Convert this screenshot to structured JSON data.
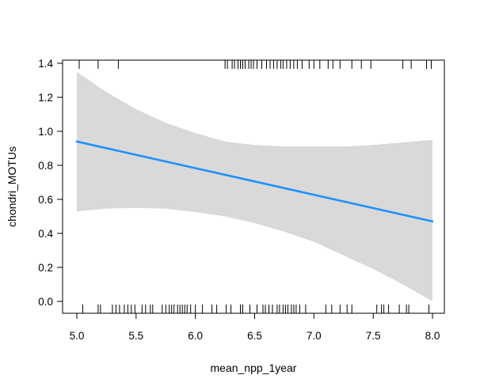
{
  "chart_data": {
    "type": "line",
    "title": "",
    "xlabel": "mean_npp_1year",
    "ylabel": "chondri_MOTUs",
    "xlim": [
      4.9,
      8.1
    ],
    "ylim": [
      -0.07,
      1.42
    ],
    "x_ticks": [
      "5.0",
      "5.5",
      "6.0",
      "6.5",
      "7.0",
      "7.5",
      "8.0"
    ],
    "y_ticks": [
      "0.0",
      "0.2",
      "0.4",
      "0.6",
      "0.8",
      "1.0",
      "1.2",
      "1.4"
    ],
    "grid": false,
    "legend": "none",
    "series": [
      {
        "fit_x": [
          5.0,
          8.0
        ],
        "fit_y": [
          0.94,
          0.47
        ],
        "color": "#1E90FF"
      }
    ],
    "confidence_band": {
      "color": "#D9D9D9",
      "x": [
        5.0,
        5.25,
        5.5,
        5.75,
        6.0,
        6.25,
        6.5,
        6.75,
        7.0,
        7.25,
        7.5,
        7.75,
        8.0
      ],
      "upper": [
        1.35,
        1.23,
        1.13,
        1.05,
        0.99,
        0.94,
        0.92,
        0.91,
        0.91,
        0.91,
        0.92,
        0.935,
        0.95
      ],
      "lower": [
        0.53,
        0.545,
        0.55,
        0.545,
        0.525,
        0.5,
        0.46,
        0.41,
        0.35,
        0.27,
        0.19,
        0.1,
        0.0
      ]
    },
    "rug_top": [
      5.02,
      5.18,
      5.35,
      6.25,
      6.27,
      6.31,
      6.33,
      6.36,
      6.38,
      6.4,
      6.42,
      6.45,
      6.47,
      6.49,
      6.52,
      6.56,
      6.6,
      6.63,
      6.66,
      6.69,
      6.72,
      6.74,
      6.77,
      6.8,
      6.83,
      6.86,
      6.9,
      6.96,
      7.0,
      7.05,
      7.12,
      7.16,
      7.22,
      7.32,
      7.4,
      7.48,
      7.75,
      7.82,
      7.95,
      7.99
    ],
    "rug_bottom": [
      5.05,
      5.18,
      5.2,
      5.3,
      5.33,
      5.36,
      5.4,
      5.43,
      5.46,
      5.49,
      5.55,
      5.58,
      5.62,
      5.64,
      5.72,
      5.75,
      5.78,
      5.8,
      5.82,
      5.85,
      5.87,
      5.89,
      5.91,
      5.93,
      5.96,
      6.0,
      6.06,
      6.14,
      6.18,
      6.26,
      6.3,
      6.38,
      6.4,
      6.46,
      6.52,
      6.57,
      6.59,
      6.62,
      6.65,
      6.69,
      6.71,
      6.74,
      6.76,
      6.78,
      6.81,
      6.83,
      6.85,
      6.88,
      6.93,
      7.1,
      7.15,
      7.22,
      7.28,
      7.32,
      7.53,
      7.57,
      7.59,
      7.63,
      7.72,
      7.78,
      7.8,
      7.97
    ]
  }
}
